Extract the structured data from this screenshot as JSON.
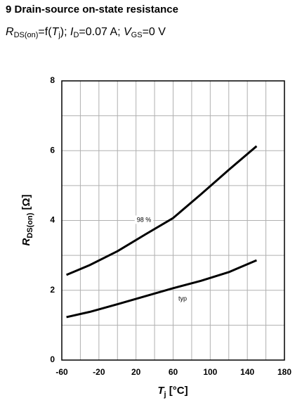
{
  "chart_data": {
    "type": "line",
    "title": "9 Drain-source on-state resistance",
    "subtitle": [
      "R",
      "DS(on)",
      "=f(",
      "T",
      "j",
      "); ",
      "I",
      "D",
      "=0.07 A; ",
      "V",
      "GS",
      "=0 V"
    ],
    "x_label": [
      "T",
      "j",
      " [°C]"
    ],
    "y_label": [
      "R",
      "DS(on)",
      " [Ω]"
    ],
    "x": [
      -55,
      -30,
      0,
      30,
      60,
      90,
      120,
      150
    ],
    "series": [
      {
        "name": "98 %",
        "color": "#000000",
        "values": [
          2.44,
          2.72,
          3.12,
          3.6,
          4.07,
          4.75,
          5.45,
          6.13
        ]
      },
      {
        "name": "typ",
        "color": "#000000",
        "values": [
          1.23,
          1.38,
          1.6,
          1.83,
          2.06,
          2.27,
          2.52,
          2.86
        ]
      }
    ],
    "xlim": [
      -60,
      180
    ],
    "xticks": [
      -60,
      -20,
      20,
      60,
      100,
      140,
      180
    ],
    "ylim": [
      0,
      8
    ],
    "yticks": [
      0,
      2,
      4,
      6,
      8
    ],
    "grid": true
  }
}
